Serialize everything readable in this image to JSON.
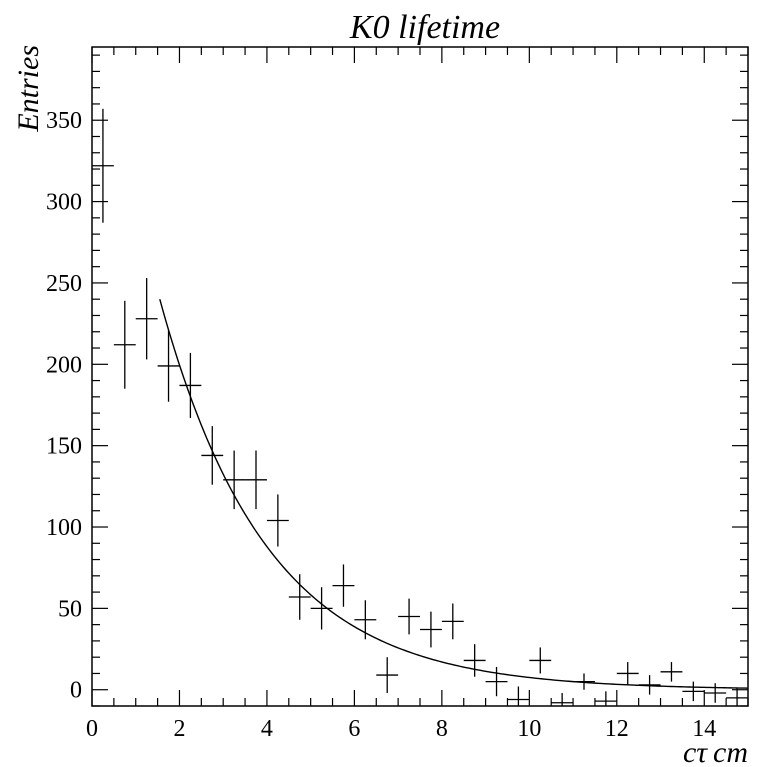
{
  "chart_data": {
    "type": "scatter",
    "title": "K0 lifetime",
    "xlabel": "cτ cm",
    "xlabel_parts": {
      "main": "cτ",
      "unit": "cm"
    },
    "ylabel": "Entries",
    "xlim": [
      0,
      15
    ],
    "ylim": [
      -10,
      395
    ],
    "x_ticks": [
      0,
      2,
      4,
      6,
      8,
      10,
      12,
      14
    ],
    "y_ticks": [
      0,
      50,
      100,
      150,
      200,
      250,
      300,
      350
    ],
    "grid": false,
    "bin_width": 0.5,
    "series": [
      {
        "kind": "histogram-errorbars",
        "points": [
          {
            "x": 0.25,
            "y": 322,
            "err": 35
          },
          {
            "x": 0.75,
            "y": 212,
            "err": 27
          },
          {
            "x": 1.25,
            "y": 228,
            "err": 25
          },
          {
            "x": 1.75,
            "y": 199,
            "err": 22
          },
          {
            "x": 2.25,
            "y": 187,
            "err": 20
          },
          {
            "x": 2.75,
            "y": 144,
            "err": 18
          },
          {
            "x": 3.25,
            "y": 129,
            "err": 18
          },
          {
            "x": 3.75,
            "y": 129,
            "err": 18
          },
          {
            "x": 4.25,
            "y": 104,
            "err": 16
          },
          {
            "x": 4.75,
            "y": 57,
            "err": 14
          },
          {
            "x": 5.25,
            "y": 50,
            "err": 13
          },
          {
            "x": 5.75,
            "y": 64,
            "err": 13
          },
          {
            "x": 6.25,
            "y": 43,
            "err": 12
          },
          {
            "x": 6.75,
            "y": 9,
            "err": 11
          },
          {
            "x": 7.25,
            "y": 45,
            "err": 11
          },
          {
            "x": 7.75,
            "y": 37,
            "err": 11
          },
          {
            "x": 8.25,
            "y": 42,
            "err": 11
          },
          {
            "x": 8.75,
            "y": 18,
            "err": 10
          },
          {
            "x": 9.25,
            "y": 5,
            "err": 9
          },
          {
            "x": 9.75,
            "y": -6,
            "err": 8
          },
          {
            "x": 10.25,
            "y": 18,
            "err": 8
          },
          {
            "x": 10.75,
            "y": -8,
            "err": 6
          },
          {
            "x": 11.25,
            "y": 5,
            "err": 5
          },
          {
            "x": 11.75,
            "y": -7,
            "err": 6
          },
          {
            "x": 12.25,
            "y": 10,
            "err": 7
          },
          {
            "x": 12.75,
            "y": 3,
            "err": 6
          },
          {
            "x": 13.25,
            "y": 11,
            "err": 6
          },
          {
            "x": 13.75,
            "y": -1,
            "err": 6
          },
          {
            "x": 14.25,
            "y": -2,
            "err": 6
          },
          {
            "x": 14.75,
            "y": -5,
            "err": 6
          }
        ]
      },
      {
        "kind": "fit-curve",
        "function": "exponential",
        "x_range": [
          1.55,
          15
        ],
        "amplitude_at_start": 240,
        "decay_length_cm": 2.44
      }
    ]
  }
}
